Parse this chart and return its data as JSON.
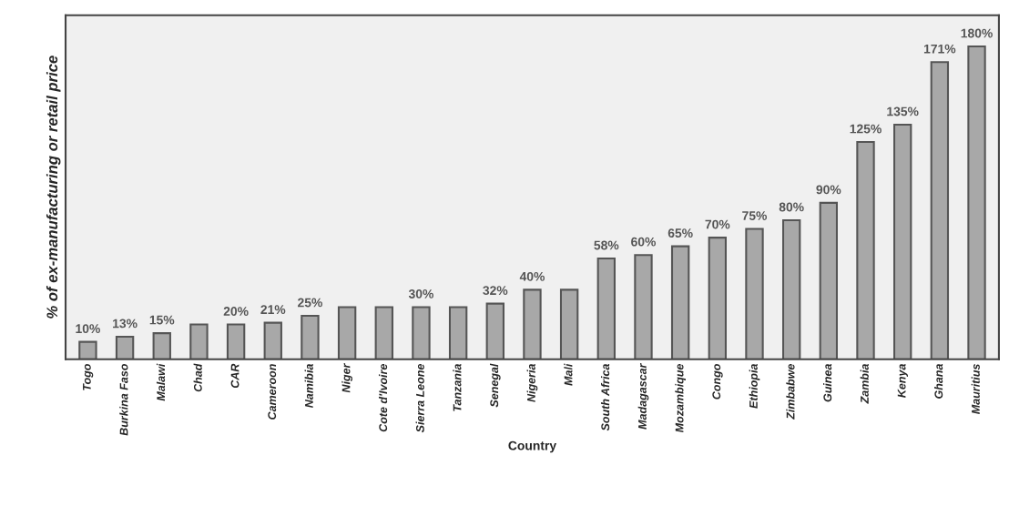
{
  "chart_data": {
    "type": "bar",
    "xlabel": "Country",
    "ylabel": "% of ex-manufacturing or retail price",
    "categories": [
      "Togo",
      "Burkina Faso",
      "Malawi",
      "Chad",
      "CAR",
      "Cameroon",
      "Namibia",
      "Niger",
      "Cote d'Ivoire",
      "Sierra Leone",
      "Tanzania",
      "Senegal",
      "Nigeria",
      "Mali",
      "South Africa",
      "Madagascar",
      "Mozambique",
      "Congo",
      "Ethiopia",
      "Zimbabwe",
      "Guinea",
      "Zambia",
      "Kenya",
      "Ghana",
      "Mauritius"
    ],
    "values": [
      10,
      13,
      15,
      20,
      20,
      21,
      25,
      30,
      30,
      30,
      30,
      32,
      40,
      40,
      58,
      60,
      65,
      70,
      75,
      80,
      90,
      125,
      135,
      171,
      180
    ],
    "value_labels": [
      "10%",
      "13%",
      "15%",
      null,
      "20%",
      "21%",
      "25%",
      null,
      null,
      "30%",
      null,
      "32%",
      "40%",
      null,
      "58%",
      "60%",
      "65%",
      "70%",
      "75%",
      "80%",
      "90%",
      "125%",
      "135%",
      "171%",
      "180%"
    ],
    "color": "#a8a8a8",
    "grid": false,
    "legend": false
  }
}
